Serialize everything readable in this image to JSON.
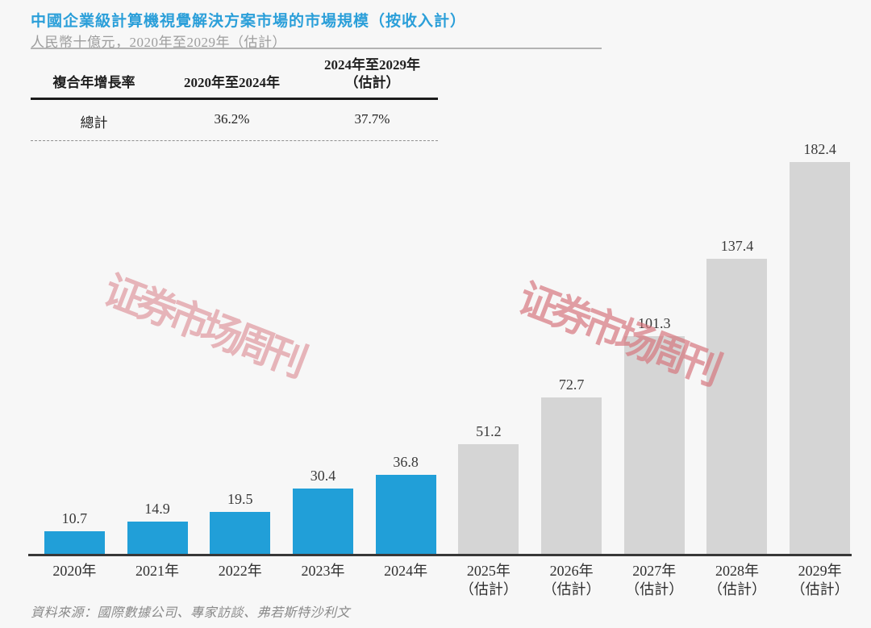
{
  "header": {
    "title": "中國企業級計算機視覺解決方案市場的市場規模（按收入計）",
    "subtitle": "人民幣十億元，2020年至2029年（估計）",
    "title_color": "#2b9fd9"
  },
  "cagr_table": {
    "col1_header": "複合年增長率",
    "col2_header": "2020年至2024年",
    "col3_header_line1": "2024年至2029年",
    "col3_header_line2": "（估計）",
    "row": {
      "label": "總計",
      "cagr_2020_2024": "36.2%",
      "cagr_2024_2029": "37.7%"
    }
  },
  "chart_data": {
    "type": "bar",
    "title": "中國企業級計算機視覺解決方案市場的市場規模（按收入計）",
    "unit_label": "人民幣十億元",
    "categories": [
      "2020年",
      "2021年",
      "2022年",
      "2023年",
      "2024年",
      "2025年（估計）",
      "2026年（估計）",
      "2027年（估計）",
      "2028年（估計）",
      "2029年（估計）"
    ],
    "values": [
      10.7,
      14.9,
      19.5,
      30.4,
      36.8,
      51.2,
      72.7,
      101.3,
      137.4,
      182.4
    ],
    "value_labels": [
      "10.7",
      "14.9",
      "19.5",
      "30.4",
      "36.8",
      "51.2",
      "72.7",
      "101.3",
      "137.4",
      "182.4"
    ],
    "x_tick_lines": [
      [
        "2020年"
      ],
      [
        "2021年"
      ],
      [
        "2022年"
      ],
      [
        "2023年"
      ],
      [
        "2024年"
      ],
      [
        "2025年",
        "（估計）"
      ],
      [
        "2026年",
        "（估計）"
      ],
      [
        "2027年",
        "（估計）"
      ],
      [
        "2028年",
        "（估計）"
      ],
      [
        "2029年",
        "（估計）"
      ]
    ],
    "estimate_from_index": 5,
    "bar_colors": {
      "actual": "#219fd8",
      "estimate": "#d5d5d5"
    },
    "ylim": [
      0,
      190
    ],
    "grid": false,
    "legend": "none"
  },
  "watermark": {
    "text": "证券市场周刊",
    "color": "#d6747c"
  },
  "source": {
    "text": "資料來源：國際數據公司、專家訪談、弗若斯特沙利文"
  }
}
